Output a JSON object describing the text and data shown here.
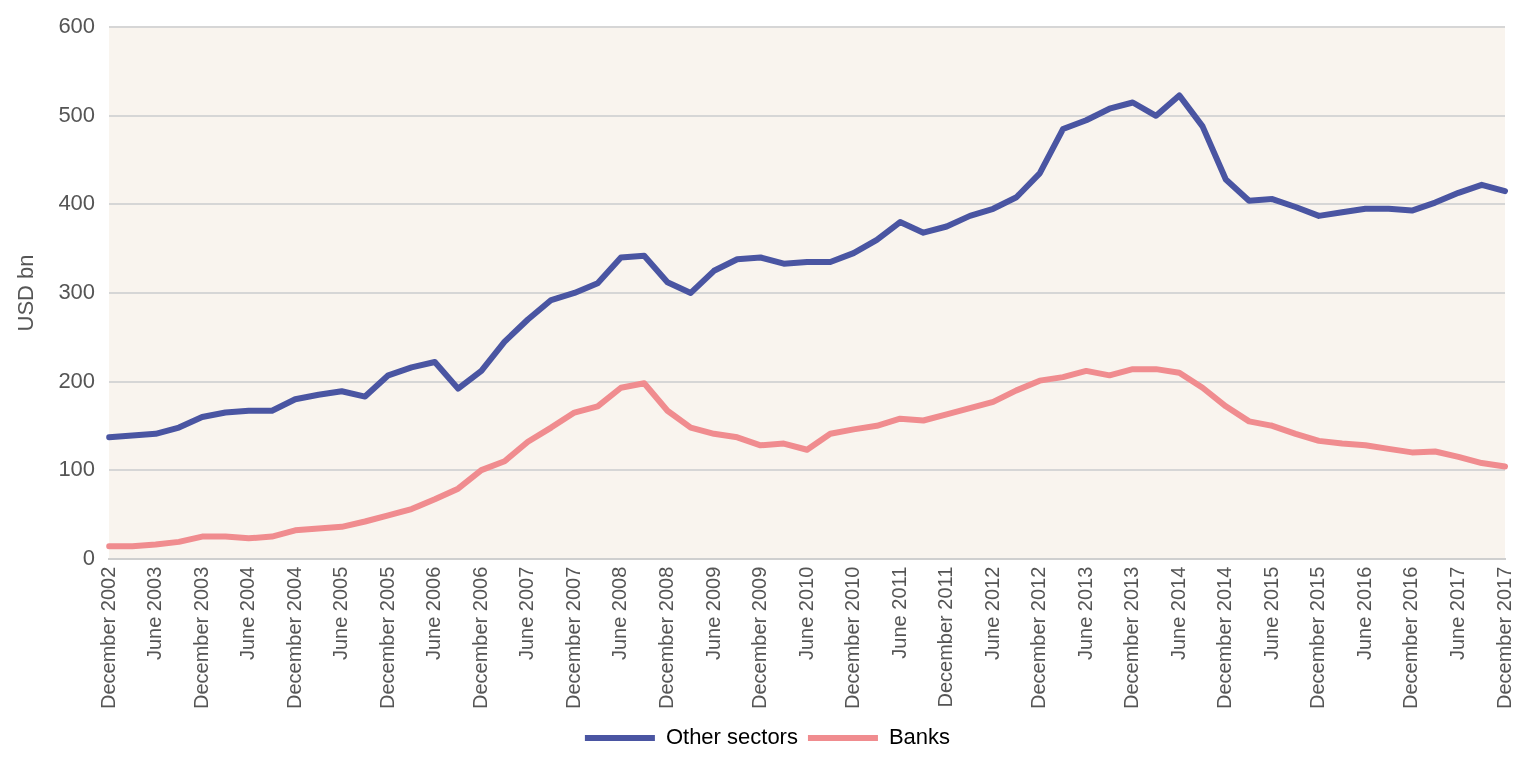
{
  "chart_data": {
    "type": "line",
    "ylabel": "USD bn",
    "categories": [
      "December 2002",
      null,
      "June 2003",
      null,
      "December 2003",
      null,
      "June 2004",
      null,
      "December 2004",
      null,
      "June 2005",
      null,
      "December 2005",
      null,
      "June 2006",
      null,
      "December 2006",
      null,
      "June 2007",
      null,
      "December 2007",
      null,
      "June 2008",
      null,
      "December 2008",
      null,
      "June 2009",
      null,
      "December 2009",
      null,
      "June 2010",
      null,
      "December 2010",
      null,
      "June 2011",
      null,
      "December 2011",
      null,
      "June 2012",
      null,
      "December 2012",
      null,
      "June 2013",
      null,
      "December 2013",
      null,
      "June 2014",
      null,
      "December 2014",
      null,
      "June 2015",
      null,
      "December 2015",
      null,
      "June 2016",
      null,
      "December 2016",
      null,
      "June 2017",
      null,
      "December 2017"
    ],
    "series": [
      {
        "name": "Other sectors",
        "color": "#4a55a2",
        "values": [
          137,
          139,
          141,
          148,
          160,
          165,
          167,
          167,
          180,
          185,
          189,
          183,
          207,
          216,
          222,
          192,
          212,
          245,
          270,
          292,
          300,
          311,
          340,
          342,
          312,
          300,
          325,
          338,
          340,
          333,
          335,
          335,
          345,
          360,
          380,
          368,
          375,
          387,
          395,
          408,
          435,
          485,
          495,
          508,
          515,
          500,
          523,
          488,
          428,
          404,
          406,
          397,
          387,
          391,
          395,
          395,
          393,
          402,
          413,
          422,
          415
        ]
      },
      {
        "name": "Banks",
        "color": "#f08c8f",
        "values": [
          14,
          14,
          16,
          19,
          25,
          25,
          23,
          25,
          32,
          34,
          36,
          42,
          49,
          56,
          67,
          79,
          100,
          110,
          132,
          148,
          165,
          172,
          193,
          198,
          167,
          148,
          141,
          137,
          128,
          130,
          123,
          141,
          146,
          150,
          158,
          156,
          163,
          170,
          177,
          190,
          201,
          205,
          212,
          207,
          214,
          214,
          210,
          193,
          172,
          155,
          150,
          141,
          133,
          130,
          128,
          124,
          120,
          121,
          115,
          108,
          104
        ]
      }
    ],
    "ylim": [
      0,
      600
    ],
    "yticks": [
      0,
      100,
      200,
      300,
      400,
      500,
      600
    ],
    "grid": "y",
    "legend": "bottom",
    "marker": "none",
    "line_style": "solid"
  }
}
